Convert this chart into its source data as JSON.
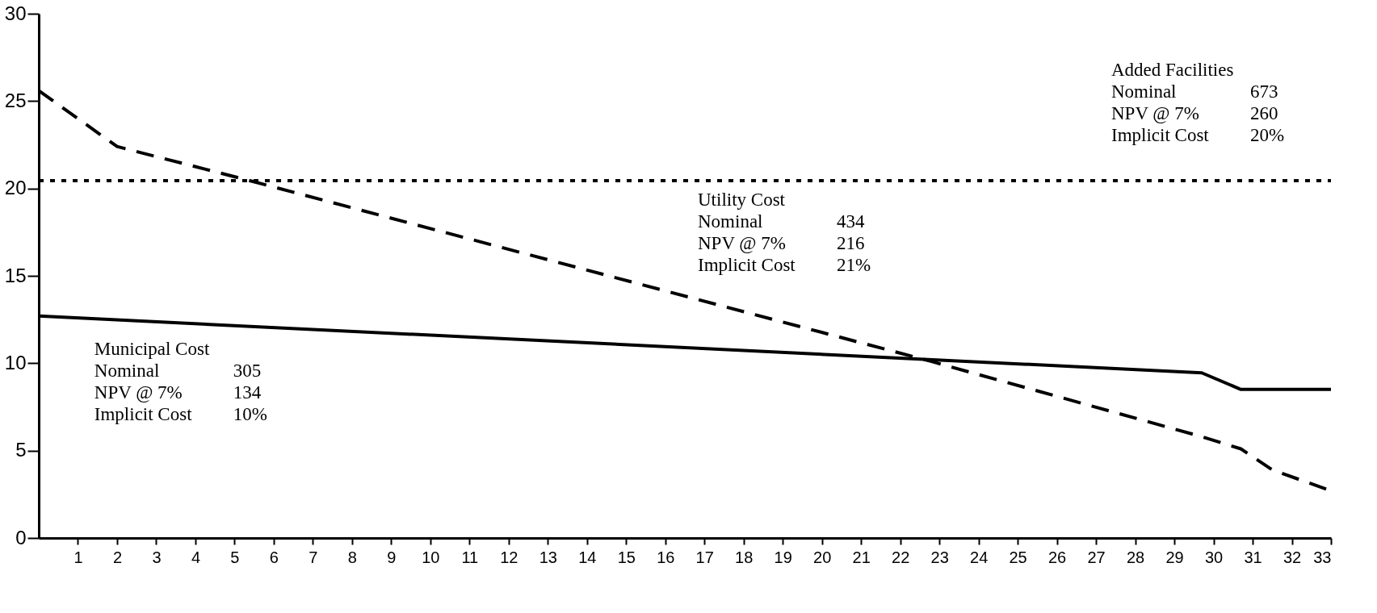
{
  "chart_data": {
    "type": "line",
    "xlim": [
      0,
      33
    ],
    "ylim": [
      0,
      30
    ],
    "xticks": [
      1,
      2,
      3,
      4,
      5,
      6,
      7,
      8,
      9,
      10,
      11,
      12,
      13,
      14,
      15,
      16,
      17,
      18,
      19,
      20,
      21,
      22,
      23,
      24,
      25,
      26,
      27,
      28,
      29,
      30,
      31,
      32,
      33
    ],
    "yticks": [
      0,
      5,
      10,
      15,
      20,
      25,
      30
    ],
    "grid": false,
    "marker": "none",
    "series": [
      {
        "color": "#000000",
        "line_style": "dashed",
        "x": [
          0,
          2,
          5.3,
          22.8,
          29.7,
          30.7,
          31.5,
          33
        ],
        "values": [
          25.6,
          22.4,
          20.5,
          10.1,
          5.8,
          5.1,
          3.9,
          2.7
        ]
      },
      {
        "color": "#000000",
        "line_style": "dotted",
        "x": [
          0,
          33
        ],
        "values": [
          20.45,
          20.45
        ]
      },
      {
        "color": "#000000",
        "line_style": "solid",
        "x": [
          0,
          29.7,
          30.7,
          33
        ],
        "values": [
          12.7,
          9.45,
          8.5,
          8.5
        ]
      }
    ],
    "annotations": [
      "Municipal Cost\nNominal 305\nNPV @ 7% 134\nImplicit Cost 10%",
      "Utility Cost\nNominal 434\nNPV @ 7% 216\nImplicit Cost 21%",
      "Added Facilities\nNominal 673\nNPV @ 7% 260\nImplicit Cost 20%"
    ]
  }
}
